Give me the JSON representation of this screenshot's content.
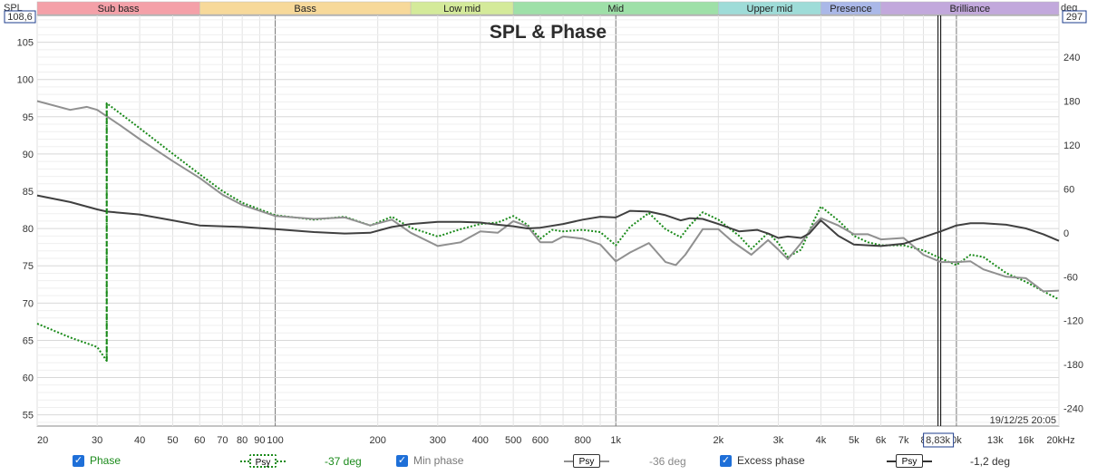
{
  "chart_data": {
    "type": "line",
    "title": "SPL & Phase",
    "left_axis": {
      "label": "SPL",
      "top_value": "108,6",
      "ticks": [
        105,
        100,
        95,
        90,
        85,
        80,
        75,
        70,
        65,
        60,
        55
      ],
      "range": [
        53.5,
        108.6
      ]
    },
    "right_axis": {
      "label": "deg",
      "top_value": "297",
      "ticks": [
        240,
        180,
        120,
        60,
        0,
        -60,
        -120,
        -180,
        -240
      ],
      "range": [
        -264,
        297
      ]
    },
    "x_axis": {
      "scale": "log",
      "range": [
        20,
        20000
      ],
      "unit": "kHz",
      "ticks": [
        {
          "v": 20,
          "t": "20"
        },
        {
          "v": 30,
          "t": "30"
        },
        {
          "v": 40,
          "t": "40"
        },
        {
          "v": 50,
          "t": "50"
        },
        {
          "v": 60,
          "t": "60"
        },
        {
          "v": 70,
          "t": "70"
        },
        {
          "v": 80,
          "t": "80"
        },
        {
          "v": 90,
          "t": "90"
        },
        {
          "v": 100,
          "t": "100"
        },
        {
          "v": 200,
          "t": "200"
        },
        {
          "v": 300,
          "t": "300"
        },
        {
          "v": 400,
          "t": "400"
        },
        {
          "v": 500,
          "t": "500"
        },
        {
          "v": 600,
          "t": "600"
        },
        {
          "v": 800,
          "t": "800"
        },
        {
          "v": 1000,
          "t": "1k"
        },
        {
          "v": 2000,
          "t": "2k"
        },
        {
          "v": 3000,
          "t": "3k"
        },
        {
          "v": 4000,
          "t": "4k"
        },
        {
          "v": 5000,
          "t": "5k"
        },
        {
          "v": 6000,
          "t": "6k"
        },
        {
          "v": 7000,
          "t": "7k"
        },
        {
          "v": 8000,
          "t": "8"
        },
        {
          "v": 10000,
          "t": "0k"
        },
        {
          "v": 13000,
          "t": "13k"
        },
        {
          "v": 16000,
          "t": "16k"
        },
        {
          "v": 20000,
          "t": "20kHz"
        }
      ]
    },
    "cursor": {
      "freq": 8830,
      "label": "8,83k"
    },
    "timestamp": "19/12/25 20:05",
    "bands": [
      {
        "name": "Sub bass",
        "from": 20,
        "to": 60,
        "color": "#f4a0a8"
      },
      {
        "name": "Bass",
        "from": 60,
        "to": 250,
        "color": "#f7d99a"
      },
      {
        "name": "Low mid",
        "from": 250,
        "to": 500,
        "color": "#d4ea9a"
      },
      {
        "name": "Mid",
        "from": 500,
        "to": 2000,
        "color": "#9ee0a8"
      },
      {
        "name": "Upper mid",
        "from": 2000,
        "to": 4000,
        "color": "#9edcd8"
      },
      {
        "name": "Presence",
        "from": 4000,
        "to": 6000,
        "color": "#aab8e8"
      },
      {
        "name": "Brilliance",
        "from": 6000,
        "to": 20000,
        "color": "#c2a8dc"
      }
    ],
    "series": [
      {
        "name": "Phase",
        "unit": "deg",
        "color": "#1a8a1a",
        "style": "dotted",
        "value": "-37 deg",
        "points": [
          [
            20,
            -124
          ],
          [
            25,
            -143
          ],
          [
            30,
            -156
          ],
          [
            32,
            -175
          ],
          [
            32.01,
            177
          ],
          [
            40,
            143
          ],
          [
            50,
            108
          ],
          [
            60,
            80
          ],
          [
            70,
            57
          ],
          [
            80,
            41
          ],
          [
            100,
            24
          ],
          [
            130,
            18
          ],
          [
            160,
            22
          ],
          [
            190,
            10
          ],
          [
            220,
            22
          ],
          [
            250,
            7
          ],
          [
            300,
            -5
          ],
          [
            350,
            5
          ],
          [
            400,
            12
          ],
          [
            450,
            14
          ],
          [
            500,
            23
          ],
          [
            550,
            11
          ],
          [
            600,
            -8
          ],
          [
            650,
            4
          ],
          [
            700,
            2
          ],
          [
            800,
            4
          ],
          [
            900,
            1
          ],
          [
            1000,
            -17
          ],
          [
            1100,
            8
          ],
          [
            1250,
            27
          ],
          [
            1400,
            5
          ],
          [
            1550,
            -6
          ],
          [
            1650,
            10
          ],
          [
            1800,
            28
          ],
          [
            2000,
            18
          ],
          [
            2300,
            -4
          ],
          [
            2500,
            -22
          ],
          [
            2800,
            0
          ],
          [
            3000,
            -14
          ],
          [
            3200,
            -33
          ],
          [
            3500,
            -23
          ],
          [
            3800,
            15
          ],
          [
            4000,
            36
          ],
          [
            4500,
            17
          ],
          [
            5000,
            -4
          ],
          [
            5500,
            -13
          ],
          [
            6000,
            -17
          ],
          [
            7000,
            -17
          ],
          [
            8000,
            -24
          ],
          [
            9000,
            -35
          ],
          [
            10000,
            -44
          ],
          [
            11000,
            -30
          ],
          [
            12000,
            -33
          ],
          [
            14000,
            -55
          ],
          [
            16000,
            -67
          ],
          [
            18000,
            -80
          ],
          [
            20000,
            -91
          ]
        ]
      },
      {
        "name": "Min phase",
        "unit": "deg",
        "color": "#909090",
        "style": "solid",
        "value": "-36 deg",
        "points": [
          [
            20,
            180
          ],
          [
            25,
            168
          ],
          [
            28,
            172
          ],
          [
            30,
            168
          ],
          [
            35,
            147
          ],
          [
            40,
            128
          ],
          [
            50,
            98
          ],
          [
            60,
            75
          ],
          [
            70,
            52
          ],
          [
            80,
            38
          ],
          [
            100,
            23
          ],
          [
            130,
            19
          ],
          [
            160,
            21
          ],
          [
            190,
            10
          ],
          [
            220,
            18
          ],
          [
            250,
            0
          ],
          [
            300,
            -18
          ],
          [
            350,
            -13
          ],
          [
            400,
            2
          ],
          [
            450,
            0
          ],
          [
            500,
            16
          ],
          [
            550,
            9
          ],
          [
            600,
            -13
          ],
          [
            650,
            -13
          ],
          [
            700,
            -5
          ],
          [
            800,
            -8
          ],
          [
            900,
            -16
          ],
          [
            1000,
            -39
          ],
          [
            1100,
            -27
          ],
          [
            1250,
            -14
          ],
          [
            1400,
            -40
          ],
          [
            1500,
            -44
          ],
          [
            1600,
            -30
          ],
          [
            1800,
            5
          ],
          [
            2000,
            5
          ],
          [
            2200,
            -12
          ],
          [
            2500,
            -30
          ],
          [
            2800,
            -10
          ],
          [
            3000,
            -23
          ],
          [
            3200,
            -36
          ],
          [
            3500,
            -14
          ],
          [
            3800,
            10
          ],
          [
            4000,
            20
          ],
          [
            4500,
            10
          ],
          [
            5000,
            -2
          ],
          [
            5500,
            -2
          ],
          [
            6000,
            -9
          ],
          [
            7000,
            -7
          ],
          [
            8000,
            -30
          ],
          [
            9000,
            -40
          ],
          [
            10000,
            -40
          ],
          [
            11000,
            -39
          ],
          [
            12000,
            -50
          ],
          [
            14000,
            -60
          ],
          [
            16000,
            -62
          ],
          [
            18000,
            -80
          ],
          [
            20000,
            -79
          ]
        ]
      },
      {
        "name": "Excess phase",
        "unit": "deg",
        "color": "#404040",
        "style": "solid",
        "value": "-1,2 deg",
        "points": [
          [
            20,
            51
          ],
          [
            25,
            42
          ],
          [
            30,
            32
          ],
          [
            32,
            29
          ],
          [
            40,
            25
          ],
          [
            50,
            17
          ],
          [
            60,
            10
          ],
          [
            80,
            8
          ],
          [
            100,
            5
          ],
          [
            130,
            1
          ],
          [
            160,
            -1
          ],
          [
            190,
            0
          ],
          [
            220,
            8
          ],
          [
            250,
            12
          ],
          [
            300,
            15
          ],
          [
            350,
            15
          ],
          [
            400,
            14
          ],
          [
            450,
            11
          ],
          [
            500,
            9
          ],
          [
            550,
            6
          ],
          [
            600,
            7
          ],
          [
            700,
            12
          ],
          [
            800,
            18
          ],
          [
            900,
            22
          ],
          [
            1000,
            21
          ],
          [
            1100,
            30
          ],
          [
            1250,
            29
          ],
          [
            1400,
            24
          ],
          [
            1550,
            17
          ],
          [
            1650,
            20
          ],
          [
            1800,
            19
          ],
          [
            2000,
            12
          ],
          [
            2300,
            2
          ],
          [
            2600,
            4
          ],
          [
            2800,
            -1
          ],
          [
            3000,
            -7
          ],
          [
            3200,
            -5
          ],
          [
            3500,
            -7
          ],
          [
            3700,
            -1
          ],
          [
            4000,
            17
          ],
          [
            4500,
            -4
          ],
          [
            5000,
            -16
          ],
          [
            5500,
            -17
          ],
          [
            6000,
            -18
          ],
          [
            7000,
            -15
          ],
          [
            8000,
            -6
          ],
          [
            9000,
            2
          ],
          [
            10000,
            10
          ],
          [
            11000,
            13
          ],
          [
            12000,
            13
          ],
          [
            14000,
            11
          ],
          [
            16000,
            6
          ],
          [
            18000,
            -2
          ],
          [
            20000,
            -11
          ]
        ]
      }
    ]
  },
  "legend": {
    "phase_label": "Phase",
    "minphase_label": "Min phase",
    "excess_label": "Excess phase",
    "psy_label": "Psy",
    "phase_value": "-37 deg",
    "minphase_value": "-36 deg",
    "excess_value": "-1,2 deg",
    "check": "✓"
  }
}
